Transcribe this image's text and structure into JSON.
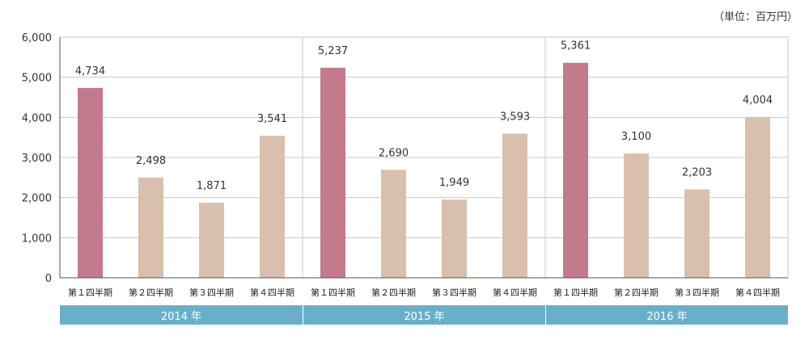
{
  "unit_label": "（単位：百万円）",
  "colors": {
    "q1": "#c27a8c",
    "other": "#d9bfad",
    "grid": "#c8c8c8",
    "axis": "#555555",
    "year_band": "#6aafca"
  },
  "chart_data": {
    "type": "bar",
    "ylim": [
      0,
      6000
    ],
    "yticks": [
      0,
      1000,
      2000,
      3000,
      4000,
      5000,
      6000
    ],
    "ytick_labels": [
      "0",
      "1,000",
      "2,000",
      "3,000",
      "4,000",
      "5,000",
      "6,000"
    ],
    "grid": true,
    "groups": [
      {
        "year": "2014 年",
        "categories": [
          "第１四半期",
          "第２四半期",
          "第３四半期",
          "第４四半期"
        ],
        "values": [
          4734,
          2498,
          1871,
          3541
        ],
        "value_labels": [
          "4,734",
          "2,498",
          "1,871",
          "3,541"
        ]
      },
      {
        "year": "2015 年",
        "categories": [
          "第１四半期",
          "第２四半期",
          "第３四半期",
          "第４四半期"
        ],
        "values": [
          5237,
          2690,
          1949,
          3593
        ],
        "value_labels": [
          "5,237",
          "2,690",
          "1,949",
          "3,593"
        ]
      },
      {
        "year": "2016 年",
        "categories": [
          "第１四半期",
          "第２四半期",
          "第３四半期",
          "第４四半期"
        ],
        "values": [
          5361,
          3100,
          2203,
          4004
        ],
        "value_labels": [
          "5,361",
          "3,100",
          "2,203",
          "4,004"
        ]
      }
    ]
  }
}
